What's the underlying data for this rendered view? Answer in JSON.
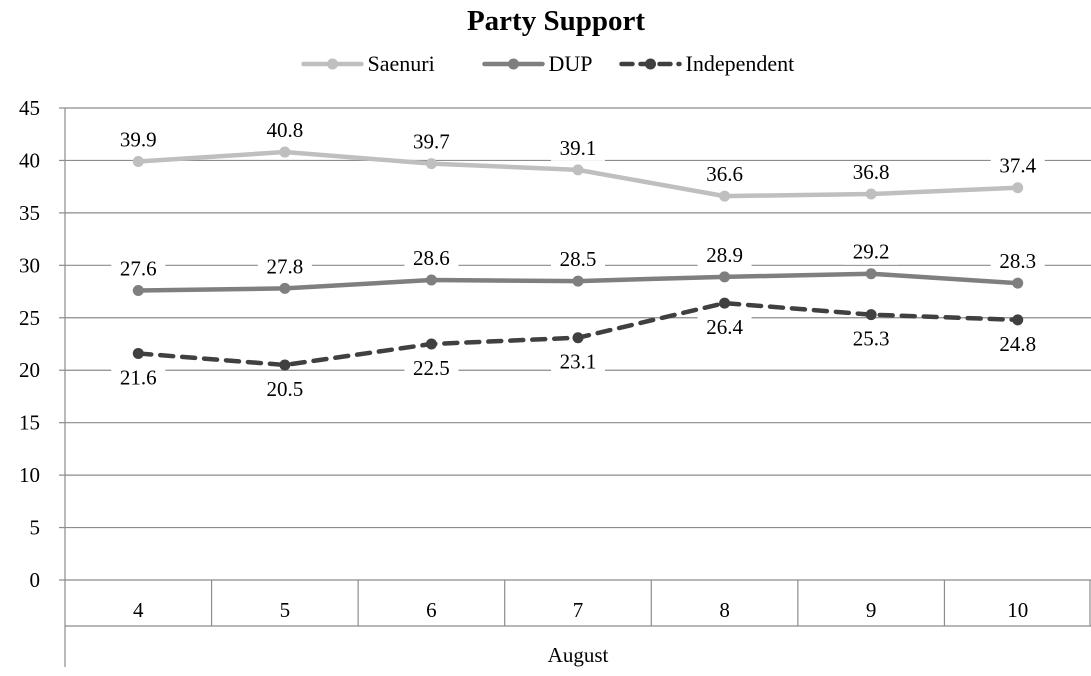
{
  "chart_data": {
    "type": "line",
    "title": "Party Support",
    "categories": [
      "4",
      "5",
      "6",
      "7",
      "8",
      "9",
      "10"
    ],
    "group_label": "August",
    "y_ticks": [
      "0",
      "5",
      "10",
      "15",
      "20",
      "25",
      "30",
      "35",
      "40",
      "45"
    ],
    "ylim": [
      0,
      45
    ],
    "grid": true,
    "legend_position": "top",
    "series": [
      {
        "name": "Saenuri",
        "values": [
          39.9,
          40.8,
          39.7,
          39.1,
          36.6,
          36.8,
          37.4
        ],
        "labels": [
          "39.9",
          "40.8",
          "39.7",
          "39.1",
          "36.6",
          "36.8",
          "37.4"
        ],
        "label_position": "above",
        "color": "#bfbfbf",
        "dashed": false
      },
      {
        "name": "DUP",
        "values": [
          27.6,
          27.8,
          28.6,
          28.5,
          28.9,
          29.2,
          28.3
        ],
        "labels": [
          "27.6",
          "27.8",
          "28.6",
          "28.5",
          "28.9",
          "29.2",
          "28.3"
        ],
        "label_position": "above",
        "color": "#7f7f7f",
        "dashed": false
      },
      {
        "name": "Independent",
        "values": [
          21.6,
          20.5,
          22.5,
          23.1,
          26.4,
          25.3,
          24.8
        ],
        "labels": [
          "21.6",
          "20.5",
          "22.5",
          "23.1",
          "26.4",
          "25.3",
          "24.8"
        ],
        "label_position": "below",
        "color": "#404040",
        "dashed": true
      }
    ]
  }
}
